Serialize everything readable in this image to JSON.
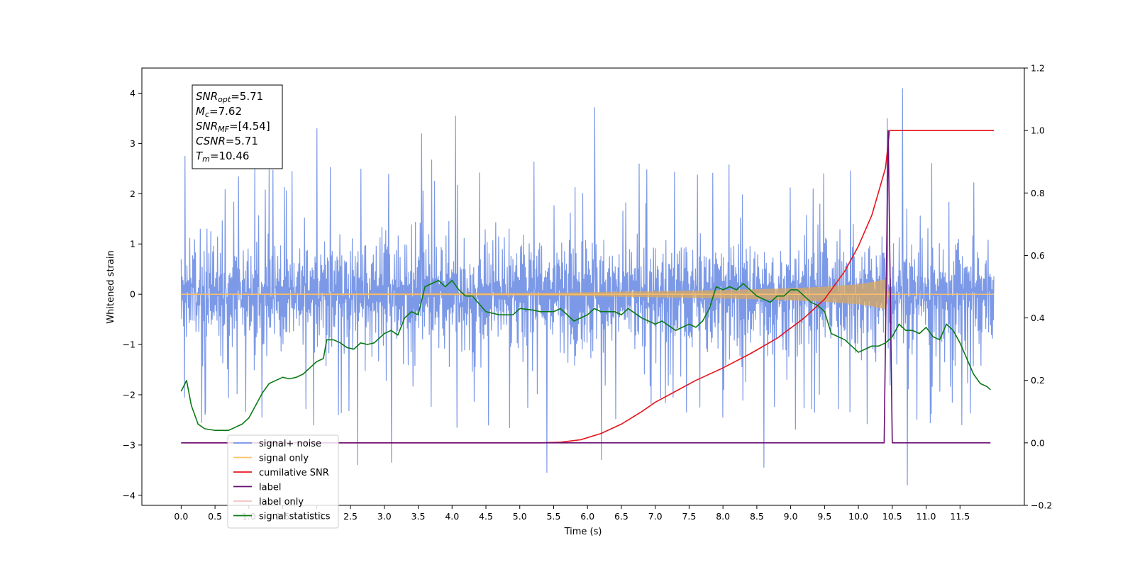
{
  "chart_data": {
    "type": "line",
    "title": "",
    "xlabel": "Time (s)",
    "ylabel": "Whitened strain",
    "ylabel_right": "",
    "xlim": [
      -0.58,
      12.45
    ],
    "ylim_left": [
      -4.2,
      4.5
    ],
    "ylim_right": [
      -0.2,
      1.2
    ],
    "x_ticks": [
      "0.0",
      "0.5",
      "1.0",
      "1.5",
      "2.0",
      "2.5",
      "3.0",
      "3.5",
      "4.0",
      "4.5",
      "5.0",
      "5.5",
      "6.0",
      "6.5",
      "7.0",
      "7.5",
      "8.0",
      "8.5",
      "9.0",
      "9.5",
      "10.0",
      "10.5",
      "11.0",
      "11.5"
    ],
    "y_ticks_left": [
      "4",
      "3",
      "2",
      "1",
      "0",
      "−1",
      "−2",
      "−3",
      "−4"
    ],
    "y_ticks_right": [
      "1.2",
      "1.0",
      "0.8",
      "0.6",
      "0.4",
      "0.2",
      "0.0",
      "−0.2"
    ],
    "annotation": {
      "lines": [
        {
          "base": "SNR",
          "sub": "opt",
          "value": "=5.71"
        },
        {
          "base": "M",
          "sub": "c",
          "value": "=7.62"
        },
        {
          "base": "SNR",
          "sub": "MF",
          "value": "=[4.54]"
        },
        {
          "base": "CSNR",
          "sub": "",
          "value": "=5.71"
        },
        {
          "base": "T",
          "sub": "m",
          "value": "=10.46"
        }
      ]
    },
    "legend": {
      "position": "lower-left",
      "entries": [
        {
          "label": "signal+ noise",
          "color": "#7593e6"
        },
        {
          "label": "signal only",
          "color": "#ffc266"
        },
        {
          "label": "cumilative SNR",
          "color": "#e8141c"
        },
        {
          "label": "label",
          "color": "#6b0f73"
        },
        {
          "label": "label only",
          "color": "#f2c1c1"
        },
        {
          "label": "signal statistics",
          "color": "#0a7a14"
        }
      ]
    },
    "series": [
      {
        "name": "signal+ noise",
        "axis": "left",
        "color": "#7593e6",
        "x_range": [
          0.0,
          12.0
        ],
        "typical_min": -1.6,
        "typical_max": 1.6,
        "peaks": [
          {
            "x": 0.05,
            "y": 2.75
          },
          {
            "x": 0.35,
            "y": -2.4
          },
          {
            "x": 2.0,
            "y": 3.3
          },
          {
            "x": 2.6,
            "y": -3.4
          },
          {
            "x": 3.1,
            "y": -3.35
          },
          {
            "x": 3.55,
            "y": 3.2
          },
          {
            "x": 4.05,
            "y": 3.55
          },
          {
            "x": 5.4,
            "y": -3.55
          },
          {
            "x": 6.1,
            "y": 3.72
          },
          {
            "x": 6.2,
            "y": -3.3
          },
          {
            "x": 8.6,
            "y": -3.45
          },
          {
            "x": 10.42,
            "y": 3.5
          },
          {
            "x": 10.65,
            "y": 4.1
          },
          {
            "x": 10.72,
            "y": -3.8
          }
        ]
      },
      {
        "name": "signal only",
        "axis": "left",
        "color": "#ffc266",
        "envelope": {
          "x": [
            0.0,
            4.0,
            5.5,
            6.5,
            7.5,
            8.5,
            9.0,
            9.5,
            10.0,
            10.2,
            10.4,
            10.46,
            10.5,
            12.0
          ],
          "amp": [
            0.01,
            0.02,
            0.03,
            0.05,
            0.07,
            0.1,
            0.12,
            0.15,
            0.2,
            0.24,
            0.3,
            0.0,
            0.0,
            0.0
          ]
        }
      },
      {
        "name": "cumilative SNR",
        "axis": "right",
        "color": "#e8141c",
        "x": [
          0.0,
          5.3,
          5.6,
          5.9,
          6.2,
          6.5,
          6.8,
          7.0,
          7.3,
          7.6,
          8.0,
          8.4,
          8.8,
          9.2,
          9.5,
          9.8,
          10.0,
          10.2,
          10.4,
          10.43,
          10.46,
          12.0
        ],
        "values": [
          0.0,
          0.0,
          0.002,
          0.01,
          0.03,
          0.06,
          0.1,
          0.13,
          0.165,
          0.2,
          0.24,
          0.285,
          0.335,
          0.4,
          0.46,
          0.55,
          0.63,
          0.73,
          0.88,
          0.94,
          1.0,
          1.0
        ]
      },
      {
        "name": "label",
        "axis": "right",
        "color": "#6b0f73",
        "x": [
          0.0,
          10.38,
          10.44,
          10.5,
          11.95
        ],
        "values": [
          0.0,
          0.0,
          1.0,
          0.0,
          0.0
        ]
      },
      {
        "name": "signal statistics",
        "axis": "right",
        "color": "#0a7a14",
        "x": [
          0.0,
          0.08,
          0.15,
          0.25,
          0.35,
          0.5,
          0.7,
          0.8,
          0.9,
          1.0,
          1.1,
          1.2,
          1.3,
          1.4,
          1.5,
          1.6,
          1.7,
          1.8,
          1.9,
          2.0,
          2.1,
          2.15,
          2.25,
          2.35,
          2.45,
          2.55,
          2.65,
          2.75,
          2.85,
          3.0,
          3.1,
          3.2,
          3.3,
          3.4,
          3.5,
          3.6,
          3.7,
          3.8,
          3.9,
          4.0,
          4.1,
          4.2,
          4.3,
          4.5,
          4.7,
          4.9,
          5.0,
          5.2,
          5.3,
          5.5,
          5.6,
          5.8,
          6.0,
          6.1,
          6.2,
          6.4,
          6.5,
          6.6,
          6.8,
          7.0,
          7.1,
          7.3,
          7.5,
          7.6,
          7.7,
          7.8,
          7.9,
          8.0,
          8.1,
          8.2,
          8.3,
          8.4,
          8.5,
          8.6,
          8.7,
          8.8,
          8.9,
          9.0,
          9.1,
          9.2,
          9.3,
          9.4,
          9.5,
          9.6,
          9.8,
          10.0,
          10.1,
          10.2,
          10.3,
          10.4,
          10.5,
          10.6,
          10.7,
          10.8,
          10.9,
          11.0,
          11.1,
          11.2,
          11.3,
          11.4,
          11.5,
          11.6,
          11.7,
          11.8,
          11.9,
          11.95
        ],
        "values": [
          0.165,
          0.2,
          0.12,
          0.06,
          0.045,
          0.04,
          0.04,
          0.05,
          0.06,
          0.08,
          0.12,
          0.16,
          0.19,
          0.2,
          0.21,
          0.205,
          0.21,
          0.22,
          0.24,
          0.26,
          0.27,
          0.33,
          0.33,
          0.32,
          0.305,
          0.3,
          0.32,
          0.315,
          0.32,
          0.35,
          0.36,
          0.345,
          0.4,
          0.42,
          0.41,
          0.5,
          0.51,
          0.52,
          0.5,
          0.52,
          0.49,
          0.47,
          0.47,
          0.42,
          0.41,
          0.41,
          0.43,
          0.425,
          0.42,
          0.42,
          0.43,
          0.39,
          0.41,
          0.43,
          0.42,
          0.42,
          0.41,
          0.43,
          0.4,
          0.38,
          0.39,
          0.36,
          0.38,
          0.37,
          0.39,
          0.43,
          0.5,
          0.49,
          0.5,
          0.49,
          0.51,
          0.49,
          0.47,
          0.46,
          0.45,
          0.47,
          0.47,
          0.49,
          0.49,
          0.47,
          0.45,
          0.44,
          0.42,
          0.35,
          0.33,
          0.29,
          0.3,
          0.31,
          0.31,
          0.32,
          0.34,
          0.38,
          0.36,
          0.36,
          0.35,
          0.37,
          0.34,
          0.33,
          0.38,
          0.36,
          0.32,
          0.27,
          0.22,
          0.19,
          0.18,
          0.17
        ]
      }
    ]
  }
}
